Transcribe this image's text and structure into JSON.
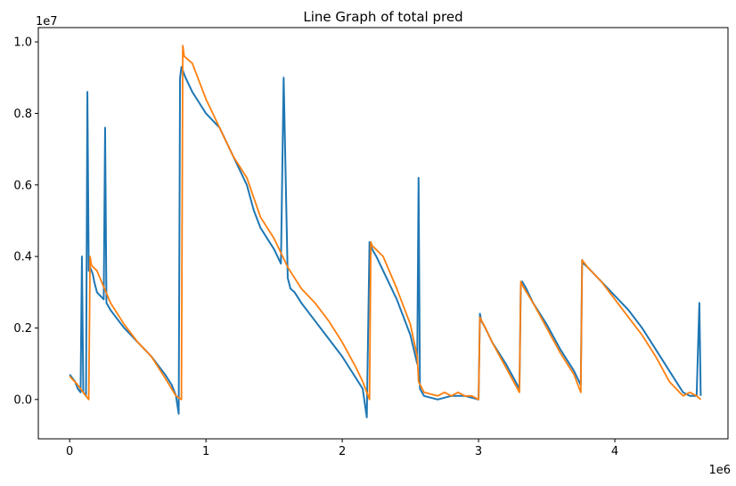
{
  "chart_data": {
    "type": "line",
    "title": "Line Graph of total pred",
    "xlabel": "",
    "ylabel": "",
    "x_offset_label": "1e6",
    "y_offset_label": "1e7",
    "xlim": [
      -0.23,
      4.83
    ],
    "ylim": [
      -0.11,
      1.04
    ],
    "x_ticks": [
      0,
      1,
      2,
      3,
      4
    ],
    "x_tick_labels": [
      "0",
      "1",
      "2",
      "3",
      "4"
    ],
    "y_ticks": [
      0.0,
      0.2,
      0.4,
      0.6,
      0.8,
      1.0
    ],
    "y_tick_labels": [
      "0.0",
      "0.2",
      "0.4",
      "0.6",
      "0.8",
      "1.0"
    ],
    "grid": false,
    "legend": "none",
    "series": [
      {
        "color": "#1f77b4",
        "x": [
          0.0,
          0.02,
          0.04,
          0.06,
          0.08,
          0.09,
          0.1,
          0.12,
          0.13,
          0.14,
          0.15,
          0.16,
          0.17,
          0.18,
          0.2,
          0.25,
          0.26,
          0.27,
          0.3,
          0.4,
          0.5,
          0.6,
          0.7,
          0.75,
          0.78,
          0.8,
          0.81,
          0.82,
          0.83,
          0.84,
          0.85,
          0.9,
          0.95,
          1.0,
          1.05,
          1.1,
          1.15,
          1.2,
          1.25,
          1.3,
          1.35,
          1.4,
          1.45,
          1.5,
          1.55,
          1.57,
          1.6,
          1.62,
          1.65,
          1.7,
          1.8,
          1.9,
          2.0,
          2.1,
          2.15,
          2.18,
          2.2,
          2.21,
          2.22,
          2.25,
          2.3,
          2.4,
          2.5,
          2.55,
          2.56,
          2.57,
          2.6,
          2.7,
          2.8,
          2.9,
          3.0,
          3.01,
          3.02,
          3.05,
          3.1,
          3.2,
          3.3,
          3.31,
          3.32,
          3.35,
          3.4,
          3.5,
          3.6,
          3.7,
          3.75,
          3.76,
          3.77,
          3.8,
          3.9,
          4.0,
          4.1,
          4.2,
          4.3,
          4.4,
          4.5,
          4.55,
          4.6,
          4.62,
          4.63
        ],
        "y": [
          0.07,
          0.06,
          0.05,
          0.03,
          0.02,
          0.4,
          0.02,
          0.01,
          0.86,
          0.36,
          0.37,
          0.36,
          0.35,
          0.33,
          0.3,
          0.28,
          0.76,
          0.27,
          0.25,
          0.2,
          0.16,
          0.12,
          0.07,
          0.04,
          0.01,
          -0.04,
          0.9,
          0.93,
          0.92,
          0.91,
          0.9,
          0.86,
          0.83,
          0.8,
          0.78,
          0.76,
          0.72,
          0.68,
          0.64,
          0.6,
          0.53,
          0.48,
          0.45,
          0.42,
          0.38,
          0.9,
          0.34,
          0.31,
          0.3,
          0.27,
          0.22,
          0.17,
          0.12,
          0.06,
          0.03,
          -0.05,
          0.44,
          0.43,
          0.42,
          0.4,
          0.36,
          0.28,
          0.18,
          0.1,
          0.62,
          0.03,
          0.01,
          0.0,
          0.01,
          0.01,
          0.0,
          0.24,
          0.22,
          0.2,
          0.16,
          0.1,
          0.03,
          0.32,
          0.33,
          0.31,
          0.27,
          0.21,
          0.14,
          0.08,
          0.04,
          0.39,
          0.38,
          0.37,
          0.33,
          0.29,
          0.25,
          0.2,
          0.14,
          0.08,
          0.02,
          0.01,
          0.01,
          0.27,
          0.01
        ]
      },
      {
        "color": "#ff7f0e",
        "x": [
          0.0,
          0.05,
          0.1,
          0.14,
          0.15,
          0.16,
          0.2,
          0.3,
          0.4,
          0.5,
          0.6,
          0.7,
          0.78,
          0.82,
          0.83,
          0.84,
          0.9,
          1.0,
          1.1,
          1.2,
          1.3,
          1.4,
          1.5,
          1.6,
          1.7,
          1.8,
          1.9,
          2.0,
          2.1,
          2.15,
          2.2,
          2.21,
          2.22,
          2.3,
          2.4,
          2.5,
          2.55,
          2.56,
          2.6,
          2.7,
          2.75,
          2.8,
          2.85,
          2.9,
          2.95,
          3.0,
          3.01,
          3.05,
          3.1,
          3.2,
          3.3,
          3.31,
          3.32,
          3.4,
          3.5,
          3.6,
          3.7,
          3.75,
          3.76,
          3.8,
          3.9,
          4.0,
          4.1,
          4.2,
          4.3,
          4.4,
          4.5,
          4.55,
          4.6,
          4.63
        ],
        "y": [
          0.065,
          0.045,
          0.02,
          0.0,
          0.4,
          0.375,
          0.36,
          0.27,
          0.21,
          0.16,
          0.12,
          0.06,
          0.01,
          0.0,
          0.99,
          0.96,
          0.94,
          0.84,
          0.76,
          0.68,
          0.62,
          0.51,
          0.45,
          0.37,
          0.31,
          0.27,
          0.22,
          0.16,
          0.09,
          0.05,
          0.0,
          0.44,
          0.43,
          0.4,
          0.31,
          0.21,
          0.12,
          0.05,
          0.02,
          0.01,
          0.02,
          0.01,
          0.02,
          0.01,
          0.01,
          0.0,
          0.23,
          0.2,
          0.16,
          0.09,
          0.02,
          0.33,
          0.32,
          0.27,
          0.2,
          0.13,
          0.07,
          0.02,
          0.39,
          0.37,
          0.33,
          0.28,
          0.23,
          0.18,
          0.12,
          0.05,
          0.01,
          0.02,
          0.01,
          0.0
        ]
      }
    ]
  }
}
